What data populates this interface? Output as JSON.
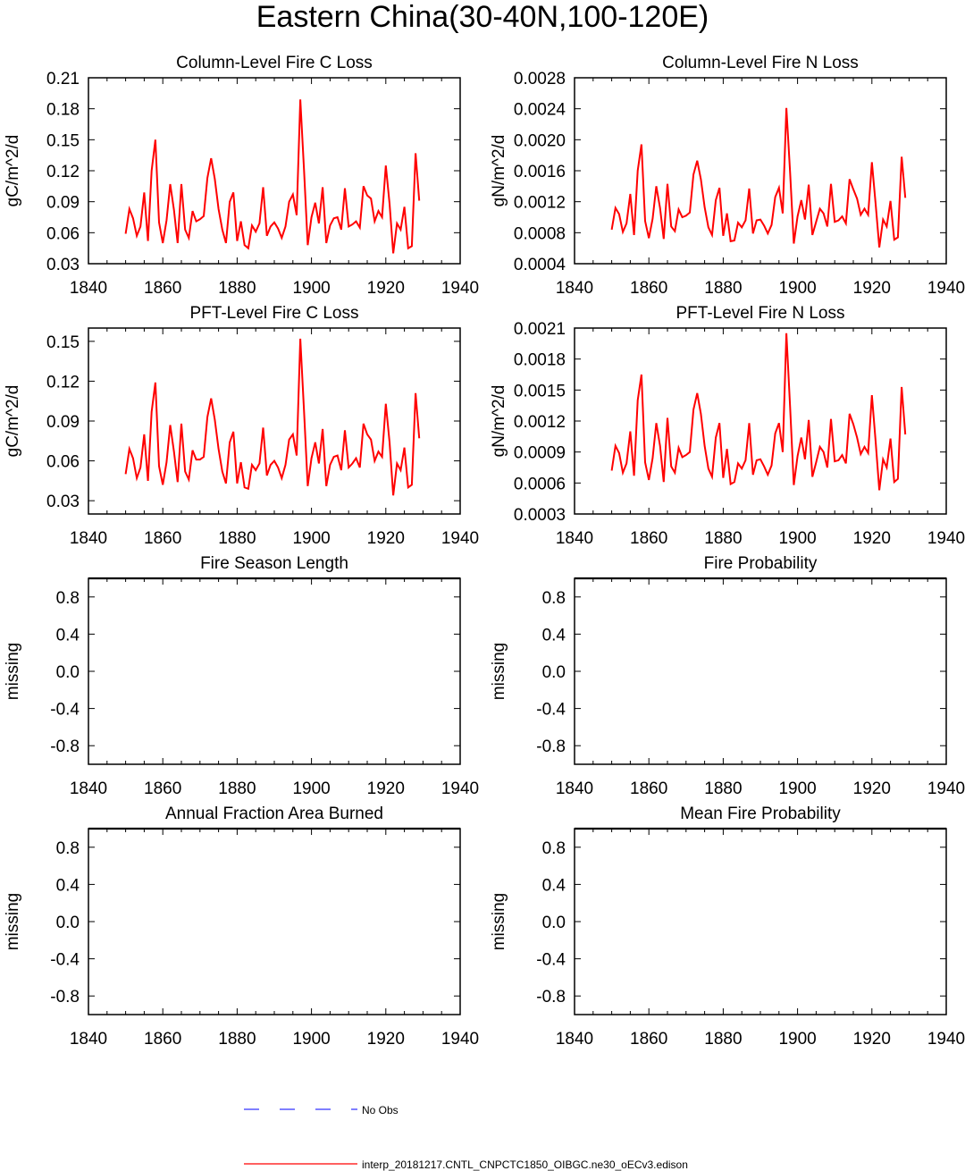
{
  "figure": {
    "title": "Eastern China(30-40N,100-120E)",
    "legend": {
      "obs_label": "No Obs",
      "obs_color": "#3333ff",
      "model_label": "interp_20181217.CNTL_CNPCTC1850_OIBGC.ne30_oECv3.edison",
      "model_color": "#ff0000"
    }
  },
  "chart_data": [
    {
      "type": "line",
      "title": "Column-Level Fire C Loss",
      "xlabel": "",
      "ylabel": "gC/m^2/d",
      "xlim": [
        1840,
        1940
      ],
      "ylim": [
        0.03,
        0.21
      ],
      "xticks": [
        "1840",
        "1860",
        "1880",
        "1900",
        "1920",
        "1940"
      ],
      "yticks": [
        "0.03",
        "0.06",
        "0.09",
        "0.12",
        "0.15",
        "0.18",
        "0.21"
      ],
      "x_start": 1850,
      "series": [
        {
          "name": "interp_20181217.CNTL_CNPCTC1850_OIBGC.ne30_oECv3.edison",
          "values": [
            0.059,
            0.083,
            0.074,
            0.057,
            0.066,
            0.099,
            0.052,
            0.12,
            0.15,
            0.07,
            0.05,
            0.072,
            0.107,
            0.082,
            0.05,
            0.107,
            0.063,
            0.055,
            0.081,
            0.071,
            0.073,
            0.076,
            0.113,
            0.132,
            0.112,
            0.083,
            0.063,
            0.05,
            0.09,
            0.099,
            0.052,
            0.071,
            0.048,
            0.045,
            0.067,
            0.061,
            0.069,
            0.104,
            0.057,
            0.066,
            0.07,
            0.064,
            0.055,
            0.066,
            0.09,
            0.097,
            0.077,
            0.189,
            0.12,
            0.048,
            0.075,
            0.089,
            0.069,
            0.104,
            0.05,
            0.067,
            0.074,
            0.075,
            0.063,
            0.103,
            0.066,
            0.068,
            0.071,
            0.065,
            0.105,
            0.096,
            0.093,
            0.071,
            0.081,
            0.075,
            0.125,
            0.088,
            0.04,
            0.069,
            0.063,
            0.085,
            0.045,
            0.047,
            0.137,
            0.091
          ]
        }
      ]
    },
    {
      "type": "line",
      "title": "Column-Level Fire N Loss",
      "xlabel": "",
      "ylabel": "gN/m^2/d",
      "xlim": [
        1840,
        1940
      ],
      "ylim": [
        0.0004,
        0.0028
      ],
      "xticks": [
        "1840",
        "1860",
        "1880",
        "1900",
        "1920",
        "1940"
      ],
      "yticks": [
        "0.0004",
        "0.0008",
        "0.0012",
        "0.0016",
        "0.0020",
        "0.0024",
        "0.0028"
      ],
      "x_start": 1850,
      "series": [
        {
          "name": "interp_20181217.CNTL_CNPCTC1850_OIBGC.ne30_oECv3.edison",
          "values": [
            0.00084,
            0.00112,
            0.00104,
            0.00081,
            0.00092,
            0.0013,
            0.00077,
            0.0016,
            0.00194,
            0.00095,
            0.00073,
            0.00098,
            0.0014,
            0.00112,
            0.00072,
            0.00143,
            0.00088,
            0.00082,
            0.0011,
            0.001,
            0.00102,
            0.00106,
            0.00155,
            0.00173,
            0.00149,
            0.00113,
            0.00087,
            0.00077,
            0.00122,
            0.00138,
            0.00076,
            0.00105,
            0.00069,
            0.0007,
            0.00093,
            0.00087,
            0.00096,
            0.00137,
            0.00079,
            0.00096,
            0.00097,
            0.00089,
            0.00079,
            0.0009,
            0.00126,
            0.00138,
            0.00105,
            0.00241,
            0.00157,
            0.00066,
            0.00101,
            0.00122,
            0.00097,
            0.00142,
            0.00077,
            0.00094,
            0.00111,
            0.00105,
            0.00088,
            0.00143,
            0.00094,
            0.00096,
            0.00101,
            0.00092,
            0.00149,
            0.00136,
            0.00124,
            0.00103,
            0.00111,
            0.00103,
            0.00171,
            0.00117,
            0.00061,
            0.00097,
            0.00088,
            0.00121,
            0.00071,
            0.00074,
            0.00178,
            0.00125
          ]
        }
      ]
    },
    {
      "type": "line",
      "title": "PFT-Level Fire C Loss",
      "xlabel": "",
      "ylabel": "gC/m^2/d",
      "xlim": [
        1840,
        1940
      ],
      "ylim": [
        0.02,
        0.16
      ],
      "xticks": [
        "1840",
        "1860",
        "1880",
        "1900",
        "1920",
        "1940"
      ],
      "yticks": [
        "0.03",
        "0.06",
        "0.09",
        "0.12",
        "0.15"
      ],
      "x_start": 1850,
      "series": [
        {
          "name": "interp_20181217.CNTL_CNPCTC1850_OIBGC.ne30_oECv3.edison",
          "values": [
            0.05,
            0.069,
            0.062,
            0.047,
            0.055,
            0.08,
            0.045,
            0.097,
            0.119,
            0.056,
            0.042,
            0.059,
            0.087,
            0.067,
            0.044,
            0.088,
            0.052,
            0.046,
            0.068,
            0.061,
            0.061,
            0.063,
            0.093,
            0.107,
            0.091,
            0.069,
            0.052,
            0.043,
            0.074,
            0.082,
            0.043,
            0.059,
            0.04,
            0.039,
            0.057,
            0.053,
            0.058,
            0.085,
            0.049,
            0.057,
            0.06,
            0.055,
            0.047,
            0.057,
            0.076,
            0.08,
            0.064,
            0.152,
            0.097,
            0.041,
            0.062,
            0.074,
            0.058,
            0.084,
            0.041,
            0.057,
            0.063,
            0.064,
            0.053,
            0.083,
            0.055,
            0.058,
            0.062,
            0.055,
            0.088,
            0.08,
            0.076,
            0.06,
            0.067,
            0.063,
            0.103,
            0.074,
            0.034,
            0.058,
            0.053,
            0.07,
            0.04,
            0.042,
            0.111,
            0.077
          ]
        }
      ]
    },
    {
      "type": "line",
      "title": "PFT-Level Fire N Loss",
      "xlabel": "",
      "ylabel": "gN/m^2/d",
      "xlim": [
        1840,
        1940
      ],
      "ylim": [
        0.0003,
        0.0021
      ],
      "xticks": [
        "1840",
        "1860",
        "1880",
        "1900",
        "1920",
        "1940"
      ],
      "yticks": [
        "0.0003",
        "0.0006",
        "0.0009",
        "0.0012",
        "0.0015",
        "0.0018",
        "0.0021"
      ],
      "x_start": 1850,
      "series": [
        {
          "name": "interp_20181217.CNTL_CNPCTC1850_OIBGC.ne30_oECv3.edison",
          "values": [
            0.00072,
            0.00096,
            0.00089,
            0.0007,
            0.00079,
            0.0011,
            0.00067,
            0.0014,
            0.00165,
            0.0008,
            0.00063,
            0.00084,
            0.00118,
            0.00096,
            0.00061,
            0.00123,
            0.00076,
            0.0007,
            0.00094,
            0.00085,
            0.00087,
            0.0009,
            0.00131,
            0.00147,
            0.00127,
            0.00096,
            0.00074,
            0.00066,
            0.00104,
            0.00118,
            0.00065,
            0.00093,
            0.00059,
            0.00061,
            0.00079,
            0.00074,
            0.00082,
            0.00118,
            0.00068,
            0.00082,
            0.00083,
            0.00076,
            0.00068,
            0.00077,
            0.00108,
            0.00118,
            0.0009,
            0.00205,
            0.00133,
            0.00058,
            0.00086,
            0.00104,
            0.00083,
            0.00121,
            0.00066,
            0.0008,
            0.00095,
            0.0009,
            0.00075,
            0.00122,
            0.00081,
            0.00082,
            0.00087,
            0.00079,
            0.00127,
            0.00117,
            0.00104,
            0.00088,
            0.00095,
            0.00089,
            0.00145,
            0.001,
            0.00053,
            0.00083,
            0.00075,
            0.00103,
            0.00061,
            0.00064,
            0.00153,
            0.00107
          ]
        }
      ]
    },
    {
      "type": "line",
      "title": "Fire Season Length",
      "xlabel": "",
      "ylabel": "missing",
      "xlim": [
        1840,
        1940
      ],
      "ylim": [
        -1.0,
        1.0
      ],
      "xticks": [
        "1840",
        "1860",
        "1880",
        "1900",
        "1920",
        "1940"
      ],
      "yticks": [
        "-0.8",
        "-0.4",
        "0.0",
        "0.4",
        "0.8"
      ],
      "x_start": 1850,
      "series": [],
      "top_line": 1.0
    },
    {
      "type": "line",
      "title": "Fire Probability",
      "xlabel": "",
      "ylabel": "missing",
      "xlim": [
        1840,
        1940
      ],
      "ylim": [
        -1.0,
        1.0
      ],
      "xticks": [
        "1840",
        "1860",
        "1880",
        "1900",
        "1920",
        "1940"
      ],
      "yticks": [
        "-0.8",
        "-0.4",
        "0.0",
        "0.4",
        "0.8"
      ],
      "x_start": 1850,
      "series": [],
      "top_line": 1.0
    },
    {
      "type": "line",
      "title": "Annual Fraction Area Burned",
      "xlabel": "",
      "ylabel": "missing",
      "xlim": [
        1840,
        1940
      ],
      "ylim": [
        -1.0,
        1.0
      ],
      "xticks": [
        "1840",
        "1860",
        "1880",
        "1900",
        "1920",
        "1940"
      ],
      "yticks": [
        "-0.8",
        "-0.4",
        "0.0",
        "0.4",
        "0.8"
      ],
      "x_start": 1850,
      "series": [],
      "top_line": 1.0
    },
    {
      "type": "line",
      "title": "Mean Fire Probability",
      "xlabel": "",
      "ylabel": "missing",
      "xlim": [
        1840,
        1940
      ],
      "ylim": [
        -1.0,
        1.0
      ],
      "xticks": [
        "1840",
        "1860",
        "1880",
        "1900",
        "1920",
        "1940"
      ],
      "yticks": [
        "-0.8",
        "-0.4",
        "0.0",
        "0.4",
        "0.8"
      ],
      "x_start": 1850,
      "series": [],
      "top_line": 1.0
    }
  ]
}
